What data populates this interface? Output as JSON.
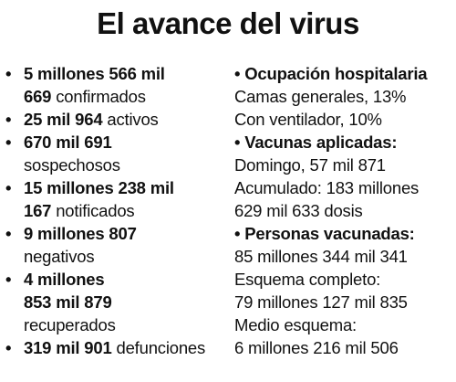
{
  "title": "El avance del virus",
  "left": [
    {
      "bold": "5 millones 566 mil",
      "text": "",
      "bullet": true
    },
    {
      "bold": "669",
      "text": " confirmados",
      "bullet": false
    },
    {
      "bold": "25 mil 964",
      "text": " activos",
      "bullet": true
    },
    {
      "bold": "670 mil 691",
      "text": "",
      "bullet": true
    },
    {
      "bold": "",
      "text": "sospechosos",
      "bullet": false
    },
    {
      "bold": "15 millones 238 mil",
      "text": "",
      "bullet": true
    },
    {
      "bold": "167",
      "text": " notificados",
      "bullet": false
    },
    {
      "bold": "9 millones 807",
      "text": "",
      "bullet": true
    },
    {
      "bold": "",
      "text": "negativos",
      "bullet": false
    },
    {
      "bold": "4 millones",
      "text": "",
      "bullet": true
    },
    {
      "bold": "853 mil 879",
      "text": "",
      "bullet": false
    },
    {
      "bold": "",
      "text": "recuperados",
      "bullet": false
    },
    {
      "bold": "319 mil 901",
      "text": " defunciones",
      "bullet": true
    }
  ],
  "right": [
    {
      "text": "• Ocupación hospitalaria",
      "header": true
    },
    {
      "text": "Camas generales, 13%",
      "header": false
    },
    {
      "text": "Con ventilador, 10%",
      "header": false
    },
    {
      "text": "• Vacunas aplicadas:",
      "header": true
    },
    {
      "text": "Domingo, 57 mil 871",
      "header": false
    },
    {
      "text": "Acumulado: 183 millones",
      "header": false
    },
    {
      "text": "629 mil 633 dosis",
      "header": false
    },
    {
      "text": "• Personas vacunadas:",
      "header": true
    },
    {
      "text": "85 millones 344 mil 341",
      "header": false
    },
    {
      "text": "Esquema completo:",
      "header": false
    },
    {
      "text": "79 millones 127 mil 835",
      "header": false
    },
    {
      "text": "Medio esquema:",
      "header": false
    },
    {
      "text": "6 millones 216 mil 506",
      "header": false
    }
  ]
}
